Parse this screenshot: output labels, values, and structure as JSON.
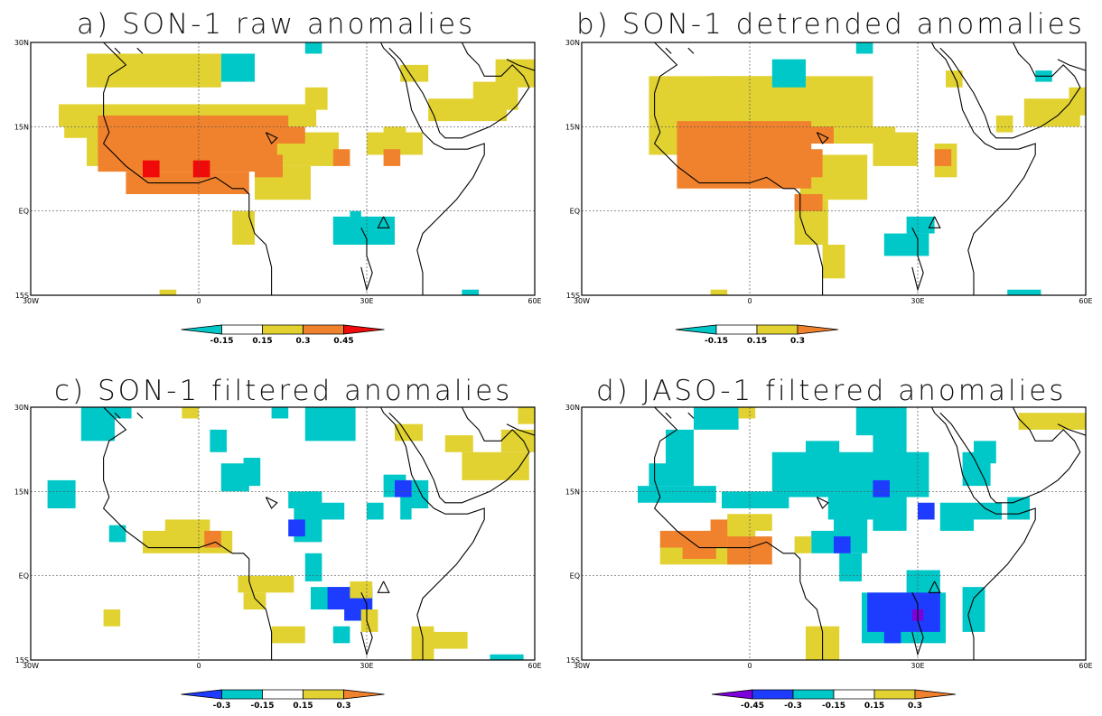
{
  "palette": {
    "cyan": "#00c8c8",
    "blue": "#1e3cff",
    "purple": "#7d00dc",
    "yellow": "#e1d232",
    "orange": "#f0822d",
    "red": "#f00a0a",
    "white": "#ffffff"
  },
  "axes": {
    "x_ticks": [
      "30W",
      "0",
      "30E",
      "60E"
    ],
    "y_ticks": [
      "30N",
      "15N",
      "EQ",
      "15S"
    ],
    "lon_range": [
      -30,
      60
    ],
    "lat_range": [
      -15,
      30
    ]
  },
  "panels": [
    {
      "title": "a) SON-1 raw anomalies",
      "colorbar": {
        "bins": [
          [
            "cyan",
            "<"
          ],
          [
            "white",
            ""
          ],
          [
            "yellow",
            ""
          ],
          [
            "orange",
            ""
          ],
          [
            "red",
            ">"
          ]
        ],
        "labels": [
          "-0.15",
          "0.15",
          "0.3",
          "0.45"
        ]
      }
    },
    {
      "title": "b) SON-1 detrended anomalies",
      "colorbar": {
        "bins": [
          [
            "cyan",
            "<"
          ],
          [
            "white",
            ""
          ],
          [
            "yellow",
            ""
          ],
          [
            "orange",
            ">"
          ]
        ],
        "labels": [
          "-0.15",
          "0.15",
          "0.3"
        ]
      }
    },
    {
      "title": "c) SON-1 filtered anomalies",
      "colorbar": {
        "bins": [
          [
            "blue",
            "<"
          ],
          [
            "cyan",
            ""
          ],
          [
            "white",
            ""
          ],
          [
            "yellow",
            ""
          ],
          [
            "orange",
            ">"
          ]
        ],
        "labels": [
          "-0.3",
          "-0.15",
          "0.15",
          "0.3"
        ]
      }
    },
    {
      "title": "d) JASO-1 filtered anomalies",
      "colorbar": {
        "bins": [
          [
            "purple",
            "<"
          ],
          [
            "blue",
            ""
          ],
          [
            "cyan",
            ""
          ],
          [
            "white",
            ""
          ],
          [
            "yellow",
            ""
          ],
          [
            "orange",
            ">"
          ]
        ],
        "labels": [
          "-0.45",
          "-0.3",
          "-0.15",
          "0.15",
          "0.3"
        ]
      }
    }
  ]
}
